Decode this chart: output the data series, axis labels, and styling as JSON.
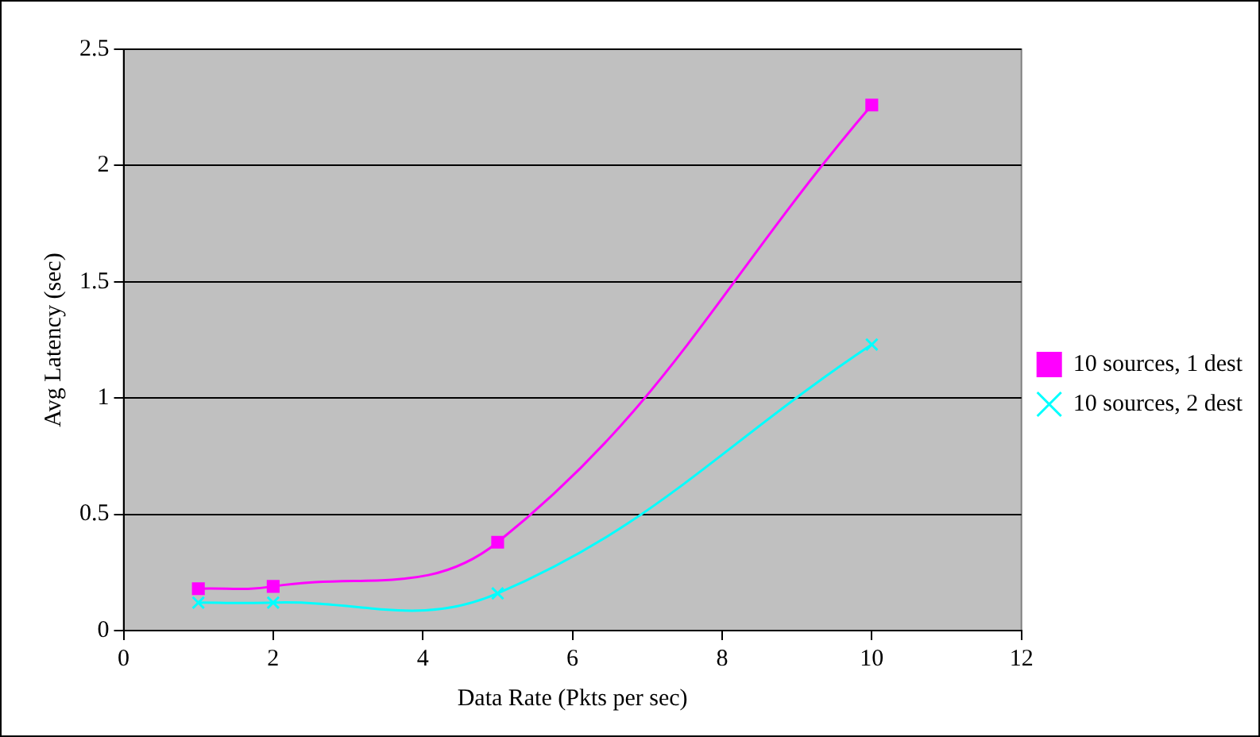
{
  "chart_data": {
    "type": "line",
    "xlabel": "Data Rate (Pkts per sec)",
    "ylabel": "Avg Latency (sec)",
    "x": [
      1,
      2,
      5,
      10
    ],
    "series": [
      {
        "name": "10 sources, 1 dest",
        "color": "#ff00ff",
        "marker": "square",
        "values": [
          0.18,
          0.19,
          0.38,
          2.26
        ]
      },
      {
        "name": "10 sources, 2 dest",
        "color": "#00ffff",
        "marker": "cross",
        "values": [
          0.12,
          0.12,
          0.16,
          1.23
        ]
      }
    ],
    "xlim": [
      0,
      12
    ],
    "xticks": [
      0,
      2,
      4,
      6,
      8,
      10,
      12
    ],
    "ylim": [
      0,
      2.5
    ],
    "yticks": [
      0,
      0.5,
      1,
      1.5,
      2,
      2.5
    ],
    "grid": "y",
    "legend": "right"
  }
}
